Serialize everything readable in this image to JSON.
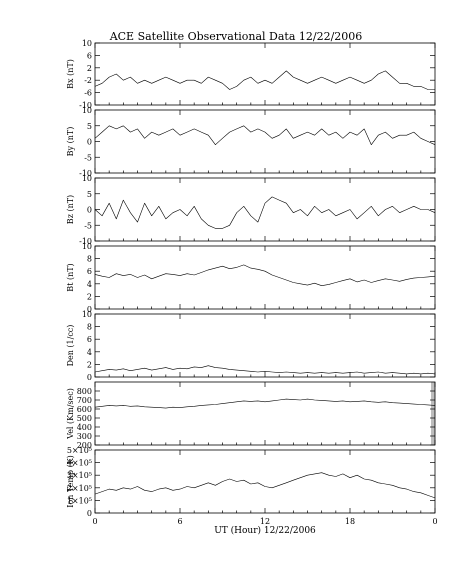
{
  "figure": {
    "title": "ACE Satellite Observational Data   12/22/2006",
    "xlabel": "UT (Hour)  12/22/2006"
  },
  "chart_data": [
    {
      "type": "line",
      "name": "bx",
      "ylabel": "Bx (nT)",
      "ylim": [
        -10,
        10
      ],
      "yticks": [
        "10",
        "6",
        "2",
        "-2",
        "-6",
        "-10"
      ],
      "ytick_values": [
        10,
        6,
        2,
        -2,
        -6,
        -10
      ],
      "xlim": [
        0,
        24
      ],
      "xticks": [
        "0",
        "6",
        "12",
        "18",
        "0"
      ],
      "xtick_values": [
        0,
        6,
        12,
        18,
        24
      ],
      "x": [
        0,
        0.5,
        1,
        1.5,
        2,
        2.5,
        3,
        3.5,
        4,
        4.5,
        5,
        5.5,
        6,
        6.5,
        7,
        7.5,
        8,
        8.5,
        9,
        9.5,
        10,
        10.5,
        11,
        11.5,
        12,
        12.5,
        13,
        13.5,
        14,
        14.5,
        15,
        15.5,
        16,
        16.5,
        17,
        17.5,
        18,
        18.5,
        19,
        19.5,
        20,
        20.5,
        21,
        21.5,
        22,
        22.5,
        23,
        23.5,
        24
      ],
      "y": [
        -4,
        -3,
        -1,
        0,
        -2,
        -1,
        -3,
        -2,
        -3,
        -2,
        -1,
        -2,
        -3,
        -2,
        -2,
        -3,
        -1,
        -2,
        -3,
        -5,
        -4,
        -2,
        -1,
        -3,
        -2,
        -3,
        -1,
        1,
        -1,
        -2,
        -3,
        -2,
        -1,
        -2,
        -3,
        -2,
        -1,
        -2,
        -3,
        -2,
        0,
        1,
        -1,
        -3,
        -3,
        -4,
        -4,
        -5,
        -5
      ],
      "gridlines": false
    },
    {
      "type": "line",
      "name": "by",
      "ylabel": "By (nT)",
      "ylim": [
        -10,
        10
      ],
      "yticks": [
        "10",
        "5",
        "0",
        "-5",
        "-10"
      ],
      "ytick_values": [
        10,
        5,
        0,
        -5,
        -10
      ],
      "xlim": [
        0,
        24
      ],
      "x": [
        0,
        0.5,
        1,
        1.5,
        2,
        2.5,
        3,
        3.5,
        4,
        4.5,
        5,
        5.5,
        6,
        6.5,
        7,
        7.5,
        8,
        8.5,
        9,
        9.5,
        10,
        10.5,
        11,
        11.5,
        12,
        12.5,
        13,
        13.5,
        14,
        14.5,
        15,
        15.5,
        16,
        16.5,
        17,
        17.5,
        18,
        18.5,
        19,
        19.5,
        20,
        20.5,
        21,
        21.5,
        22,
        22.5,
        23,
        23.5,
        24
      ],
      "y": [
        1,
        3,
        5,
        4,
        5,
        3,
        4,
        1,
        3,
        2,
        3,
        4,
        2,
        3,
        4,
        3,
        2,
        -1,
        1,
        3,
        4,
        5,
        3,
        4,
        3,
        1,
        2,
        4,
        1,
        2,
        3,
        2,
        4,
        2,
        3,
        1,
        3,
        2,
        4,
        -1,
        2,
        3,
        1,
        2,
        2,
        3,
        1,
        0,
        -1
      ],
      "gridlines": false
    },
    {
      "type": "line",
      "name": "bz",
      "ylabel": "Bz (nT)",
      "ylim": [
        -10,
        10
      ],
      "yticks": [
        "10",
        "5",
        "0",
        "-5",
        "-10"
      ],
      "ytick_values": [
        10,
        5,
        0,
        -5,
        -10
      ],
      "xlim": [
        0,
        24
      ],
      "x": [
        0,
        0.5,
        1,
        1.5,
        2,
        2.5,
        3,
        3.5,
        4,
        4.5,
        5,
        5.5,
        6,
        6.5,
        7,
        7.5,
        8,
        8.5,
        9,
        9.5,
        10,
        10.5,
        11,
        11.5,
        12,
        12.5,
        13,
        13.5,
        14,
        14.5,
        15,
        15.5,
        16,
        16.5,
        17,
        17.5,
        18,
        18.5,
        19,
        19.5,
        20,
        20.5,
        21,
        21.5,
        22,
        22.5,
        23,
        23.5,
        24
      ],
      "y": [
        0,
        -2,
        2,
        -3,
        3,
        -1,
        -4,
        2,
        -2,
        1,
        -3,
        -1,
        0,
        -2,
        1,
        -3,
        -5,
        -6,
        -6,
        -5,
        -1,
        1,
        -2,
        -4,
        2,
        4,
        3,
        2,
        -1,
        0,
        -2,
        1,
        -1,
        0,
        -2,
        -1,
        0,
        -3,
        -1,
        1,
        -2,
        0,
        1,
        -1,
        0,
        1,
        0,
        0,
        -1
      ],
      "gridlines": false
    },
    {
      "type": "line",
      "name": "bt",
      "ylabel": "Bt (nT)",
      "ylim": [
        0,
        10
      ],
      "yticks": [
        "10",
        "8",
        "6",
        "4",
        "2",
        "0"
      ],
      "ytick_values": [
        10,
        8,
        6,
        4,
        2,
        0
      ],
      "xlim": [
        0,
        24
      ],
      "x": [
        0,
        0.5,
        1,
        1.5,
        2,
        2.5,
        3,
        3.5,
        4,
        4.5,
        5,
        5.5,
        6,
        6.5,
        7,
        7.5,
        8,
        8.5,
        9,
        9.5,
        10,
        10.5,
        11,
        11.5,
        12,
        12.5,
        13,
        13.5,
        14,
        14.5,
        15,
        15.5,
        16,
        16.5,
        17,
        17.5,
        18,
        18.5,
        19,
        19.5,
        20,
        20.5,
        21,
        21.5,
        22,
        22.5,
        23,
        23.5,
        24
      ],
      "y": [
        5.5,
        5.2,
        5,
        5.6,
        5.3,
        5.5,
        5,
        5.4,
        4.8,
        5.2,
        5.6,
        5.5,
        5.3,
        5.6,
        5.4,
        5.8,
        6.2,
        6.5,
        6.8,
        6.4,
        6.6,
        7,
        6.5,
        6.3,
        6,
        5.4,
        5,
        4.6,
        4.2,
        4,
        3.8,
        4.1,
        3.7,
        3.9,
        4.2,
        4.5,
        4.8,
        4.3,
        4.6,
        4.2,
        4.5,
        4.8,
        4.6,
        4.4,
        4.7,
        4.9,
        5,
        5.1,
        5.2
      ],
      "gridlines": false
    },
    {
      "type": "line",
      "name": "den",
      "ylabel": "Den (1/cc)",
      "ylim": [
        0,
        10
      ],
      "yticks": [
        "10",
        "8",
        "6",
        "4",
        "2",
        "0"
      ],
      "ytick_values": [
        10,
        8,
        6,
        4,
        2,
        0
      ],
      "xlim": [
        0,
        24
      ],
      "x": [
        0,
        0.5,
        1,
        1.5,
        2,
        2.5,
        3,
        3.5,
        4,
        4.5,
        5,
        5.5,
        6,
        6.5,
        7,
        7.5,
        8,
        8.5,
        9,
        9.5,
        10,
        10.5,
        11,
        11.5,
        12,
        12.5,
        13,
        13.5,
        14,
        14.5,
        15,
        15.5,
        16,
        16.5,
        17,
        17.5,
        18,
        18.5,
        19,
        19.5,
        20,
        20.5,
        21,
        21.5,
        22,
        22.5,
        23,
        23.5,
        24
      ],
      "y": [
        0.8,
        1,
        1.2,
        1.1,
        1.3,
        1,
        1.2,
        1.4,
        1.1,
        1.3,
        1.5,
        1.2,
        1.4,
        1.3,
        1.6,
        1.5,
        1.8,
        1.5,
        1.4,
        1.2,
        1.1,
        1,
        0.9,
        0.8,
        0.9,
        0.8,
        0.7,
        0.8,
        0.7,
        0.6,
        0.7,
        0.6,
        0.7,
        0.6,
        0.7,
        0.6,
        0.7,
        0.8,
        0.6,
        0.7,
        0.8,
        0.6,
        0.7,
        0.6,
        0.5,
        0.6,
        0.5,
        0.6,
        0.5
      ],
      "gridlines": false
    },
    {
      "type": "line",
      "name": "vel",
      "ylabel": "Vel (Km/sec)",
      "ylim": [
        200,
        900
      ],
      "yticks": [
        "800",
        "700",
        "600",
        "500",
        "400",
        "300",
        "200"
      ],
      "ytick_values": [
        800,
        700,
        600,
        500,
        400,
        300,
        200
      ],
      "xlim": [
        0,
        24
      ],
      "data_gap_end_hour": 0.1,
      "x": [
        0,
        0.5,
        1,
        1.5,
        2,
        2.5,
        3,
        3.5,
        4,
        4.5,
        5,
        5.5,
        6,
        6.5,
        7,
        7.5,
        8,
        8.5,
        9,
        9.5,
        10,
        10.5,
        11,
        11.5,
        12,
        12.5,
        13,
        13.5,
        14,
        14.5,
        15,
        15.5,
        16,
        16.5,
        17,
        17.5,
        18,
        18.5,
        19,
        19.5,
        20,
        20.5,
        21,
        21.5,
        22,
        22.5,
        23,
        23.5,
        24
      ],
      "y": [
        620,
        630,
        640,
        635,
        640,
        630,
        635,
        625,
        620,
        615,
        610,
        620,
        615,
        625,
        630,
        640,
        645,
        650,
        660,
        670,
        680,
        690,
        685,
        690,
        680,
        690,
        700,
        710,
        705,
        700,
        710,
        700,
        695,
        690,
        685,
        690,
        680,
        685,
        690,
        680,
        675,
        680,
        670,
        665,
        660,
        655,
        650,
        645,
        640
      ],
      "gridlines": false
    },
    {
      "type": "line",
      "name": "temp",
      "ylabel": "Ion Temp (K)",
      "ylim": [
        0,
        500000
      ],
      "yticks": [
        "5×10⁵",
        "4×10⁵",
        "3×10⁵",
        "2×10⁵",
        "1×10⁵",
        "0"
      ],
      "ytick_values": [
        500000,
        400000,
        300000,
        200000,
        100000,
        0
      ],
      "xlim": [
        0,
        24
      ],
      "x": [
        0,
        0.5,
        1,
        1.5,
        2,
        2.5,
        3,
        3.5,
        4,
        4.5,
        5,
        5.5,
        6,
        6.5,
        7,
        7.5,
        8,
        8.5,
        9,
        9.5,
        10,
        10.5,
        11,
        11.5,
        12,
        12.5,
        13,
        13.5,
        14,
        14.5,
        15,
        15.5,
        16,
        16.5,
        17,
        17.5,
        18,
        18.5,
        19,
        19.5,
        20,
        20.5,
        21,
        21.5,
        22,
        22.5,
        23,
        23.5,
        24
      ],
      "y": [
        150000,
        170000,
        190000,
        180000,
        200000,
        190000,
        210000,
        180000,
        170000,
        190000,
        200000,
        180000,
        190000,
        210000,
        200000,
        220000,
        240000,
        220000,
        250000,
        270000,
        250000,
        260000,
        230000,
        240000,
        210000,
        200000,
        220000,
        240000,
        260000,
        280000,
        300000,
        310000,
        320000,
        300000,
        290000,
        310000,
        280000,
        300000,
        270000,
        260000,
        240000,
        230000,
        220000,
        200000,
        190000,
        170000,
        160000,
        140000,
        120000
      ],
      "gridlines": false
    }
  ]
}
